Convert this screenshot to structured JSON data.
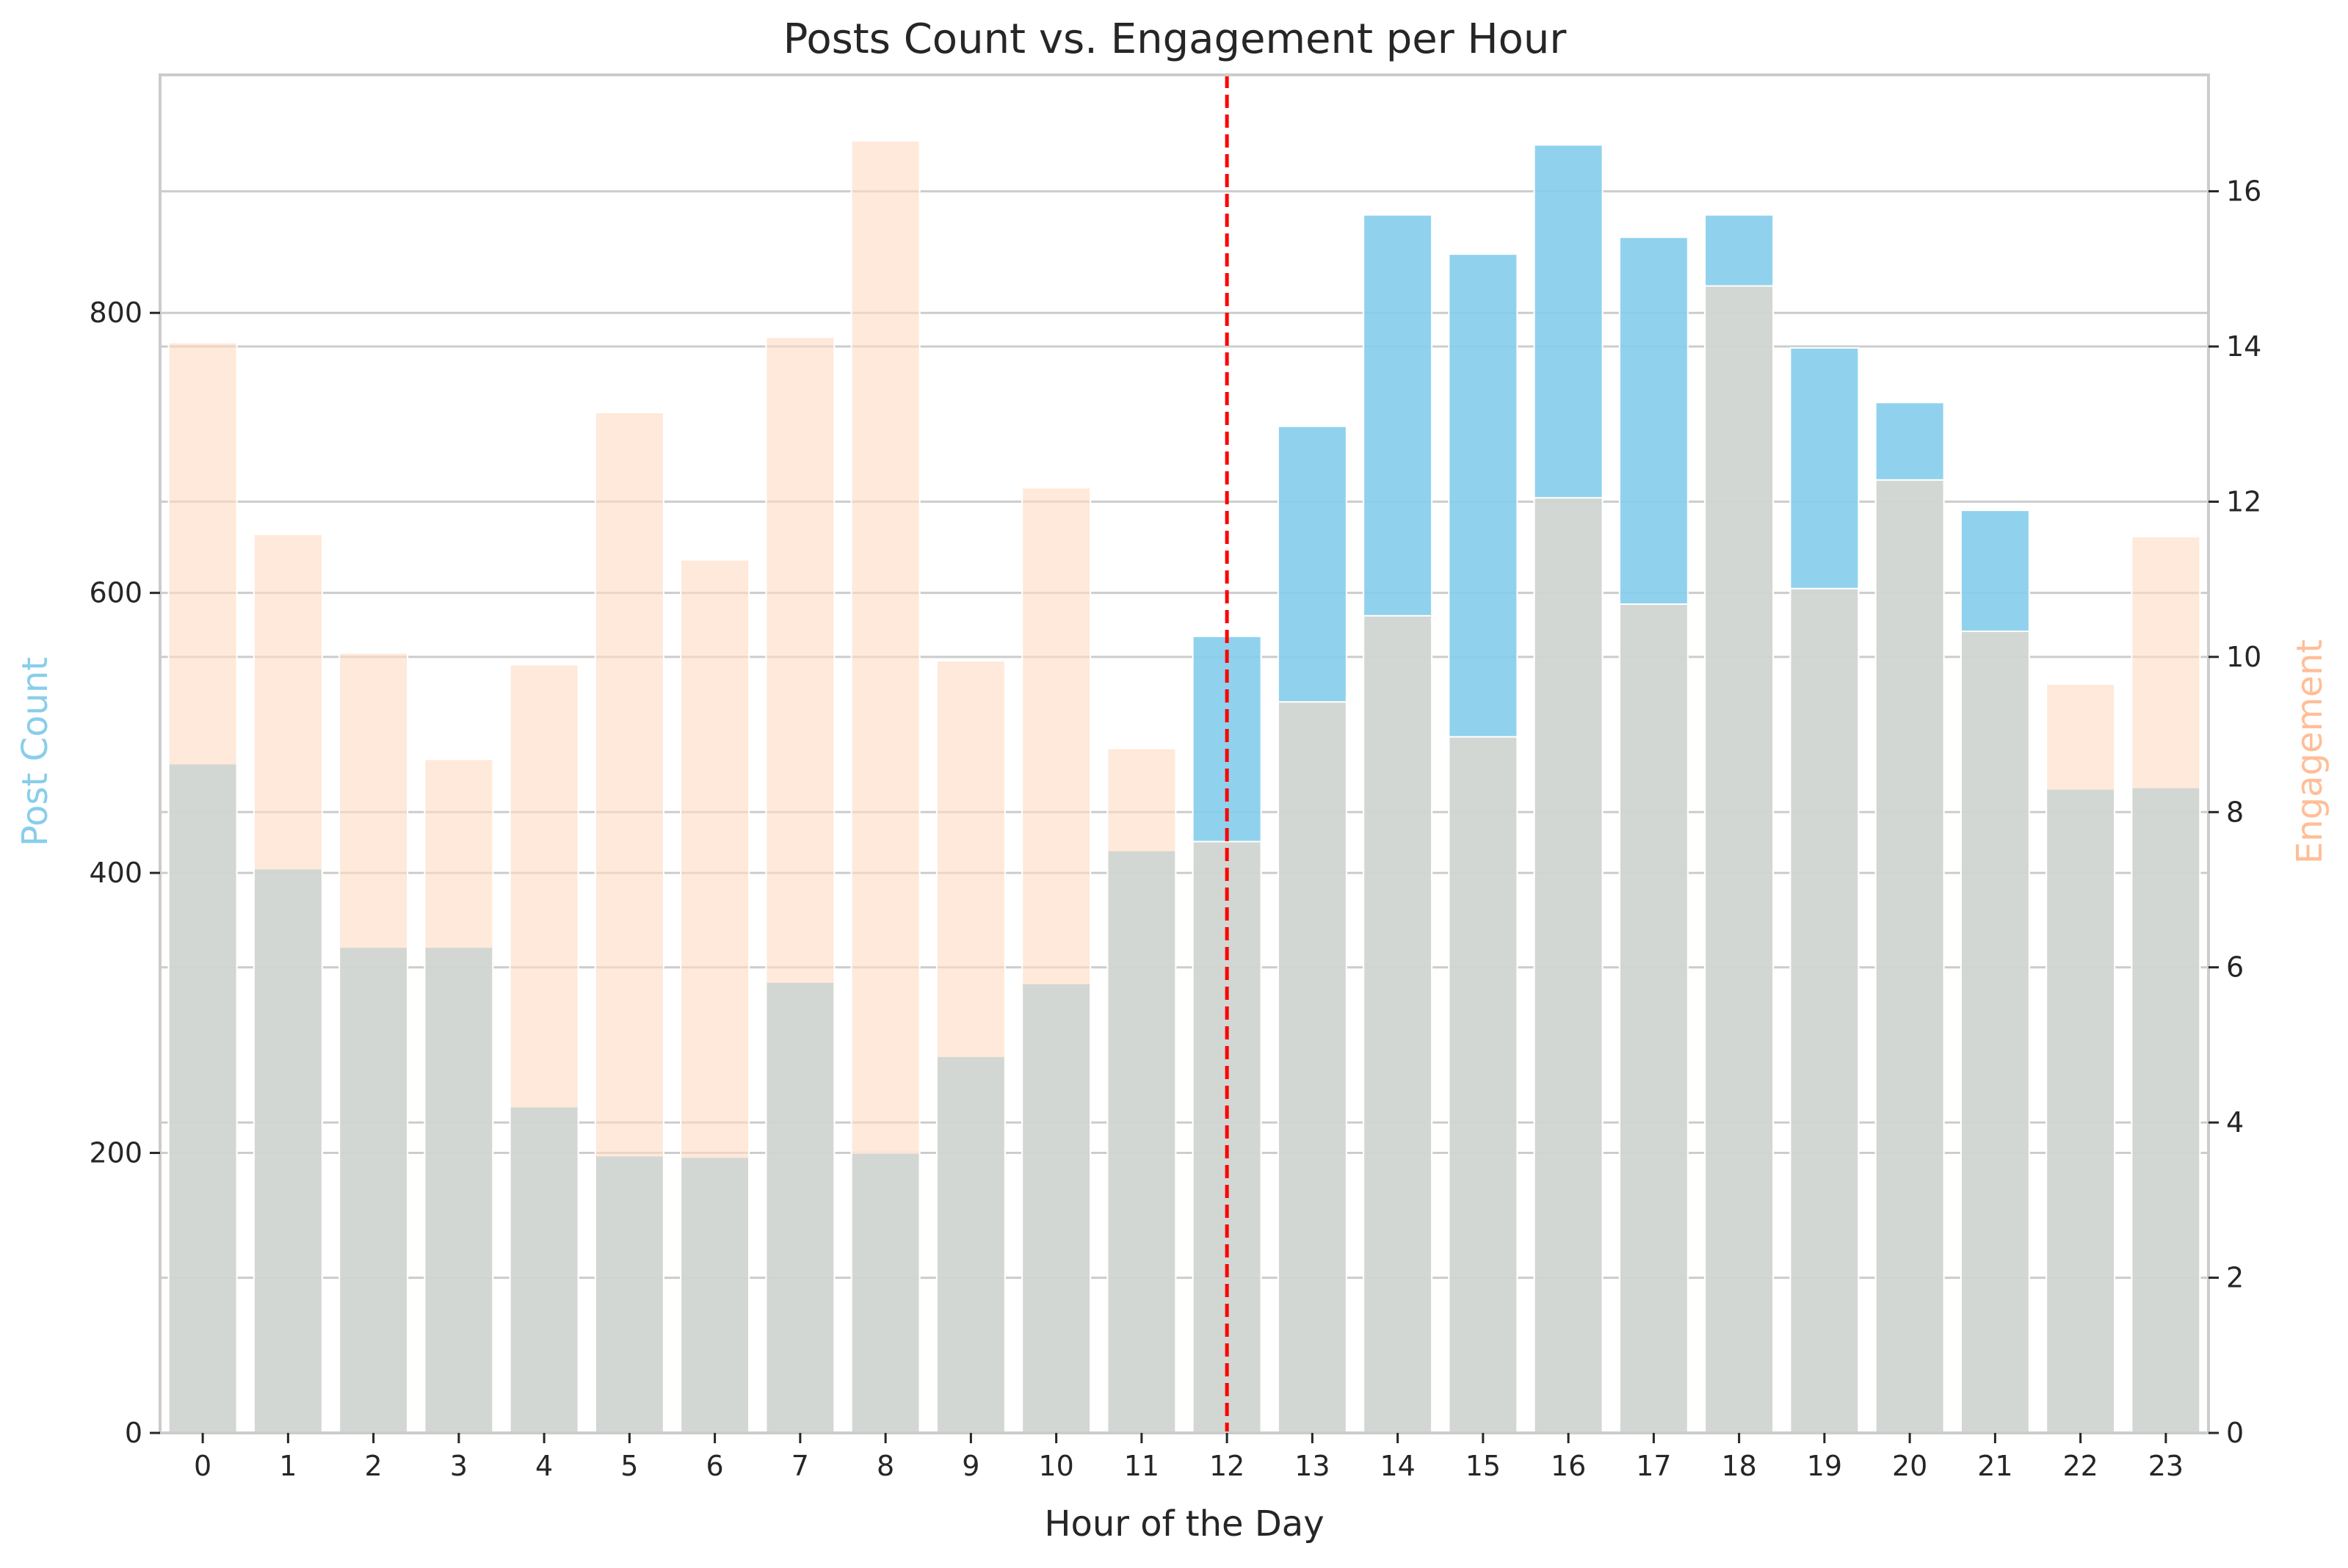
{
  "chart_data": {
    "type": "bar",
    "title": "Posts Count vs. Engagement per Hour",
    "xlabel": "Hour of the Day",
    "ylabel_left": "Post Count",
    "ylabel_right": "Engagement",
    "categories": [
      "0",
      "1",
      "2",
      "3",
      "4",
      "5",
      "6",
      "7",
      "8",
      "9",
      "10",
      "11",
      "12",
      "13",
      "14",
      "15",
      "16",
      "17",
      "18",
      "19",
      "20",
      "21",
      "22",
      "23"
    ],
    "series": [
      {
        "name": "Post Count",
        "axis": "left",
        "color": "#87CEEB",
        "values": [
          478,
          403,
          347,
          347,
          233,
          198,
          197,
          322,
          200,
          269,
          321,
          416,
          569,
          719,
          870,
          842,
          920,
          854,
          870,
          775,
          736,
          659,
          460,
          461
        ]
      },
      {
        "name": "Engagement",
        "axis": "right",
        "color": "#FFDAC1",
        "values": [
          14.05,
          11.58,
          10.05,
          8.68,
          9.9,
          13.15,
          11.25,
          14.12,
          16.65,
          9.95,
          12.18,
          8.82,
          7.62,
          9.42,
          10.53,
          8.97,
          12.05,
          10.68,
          14.78,
          10.88,
          12.28,
          10.33,
          9.65,
          11.55
        ]
      }
    ],
    "ylim_left": [
      0,
      970
    ],
    "ylim_right": [
      0,
      17.5
    ],
    "yticks_left": [
      0,
      200,
      400,
      600,
      800
    ],
    "yticks_right": [
      0,
      2,
      4,
      6,
      8,
      10,
      12,
      14,
      16
    ],
    "vline": {
      "x": "12",
      "color": "#FF0000",
      "style": "dashed"
    },
    "grid": true,
    "legend": "none",
    "colors": {
      "left_axis_label": "#87CEEB",
      "right_axis_label": "#FFBE98",
      "grid": "#CCCCCC",
      "spine": "#CCCCCC",
      "text": "#262626"
    }
  }
}
